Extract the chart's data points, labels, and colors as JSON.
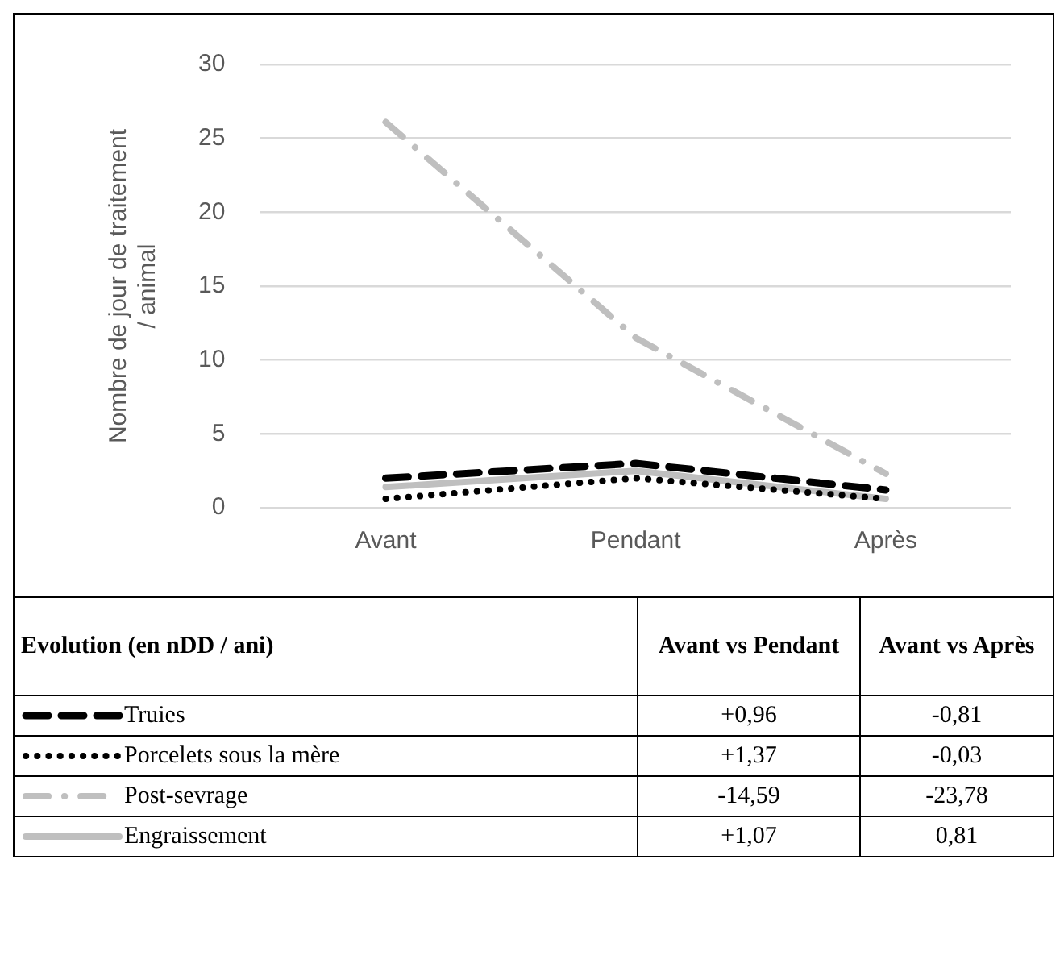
{
  "chart_data": {
    "type": "line",
    "ylabel": "Nombre de jour de traitement / animal",
    "categories": [
      "Avant",
      "Pendant",
      "Après"
    ],
    "series": [
      {
        "name": "Truies",
        "color": "#000000",
        "line_style": "dashed",
        "values": [
          2.0,
          3.0,
          1.2
        ]
      },
      {
        "name": "Porcelets sous la mère",
        "color": "#000000",
        "line_style": "dotted",
        "values": [
          0.6,
          2.0,
          0.6
        ]
      },
      {
        "name": "Post-sevrage",
        "color": "#bfbfbf",
        "line_style": "dashdot",
        "values": [
          26.1,
          11.5,
          2.3
        ]
      },
      {
        "name": "Engraissement",
        "color": "#bfbfbf",
        "line_style": "solid",
        "values": [
          1.4,
          2.5,
          0.6
        ]
      }
    ],
    "ylim": [
      0,
      30
    ],
    "yticks": [
      0,
      5,
      10,
      15,
      20,
      25,
      30
    ],
    "grid": "y",
    "legend": "bottom",
    "marker": "none",
    "annotations": [
      "Evolution (en nDD / ani)",
      "Avant vs Pendant",
      "Avant vs Après",
      "+0,96",
      "-0,81",
      "+1,37",
      "-0,03",
      "-14,59",
      "-23,78",
      "+1,07",
      "0,81"
    ]
  }
}
